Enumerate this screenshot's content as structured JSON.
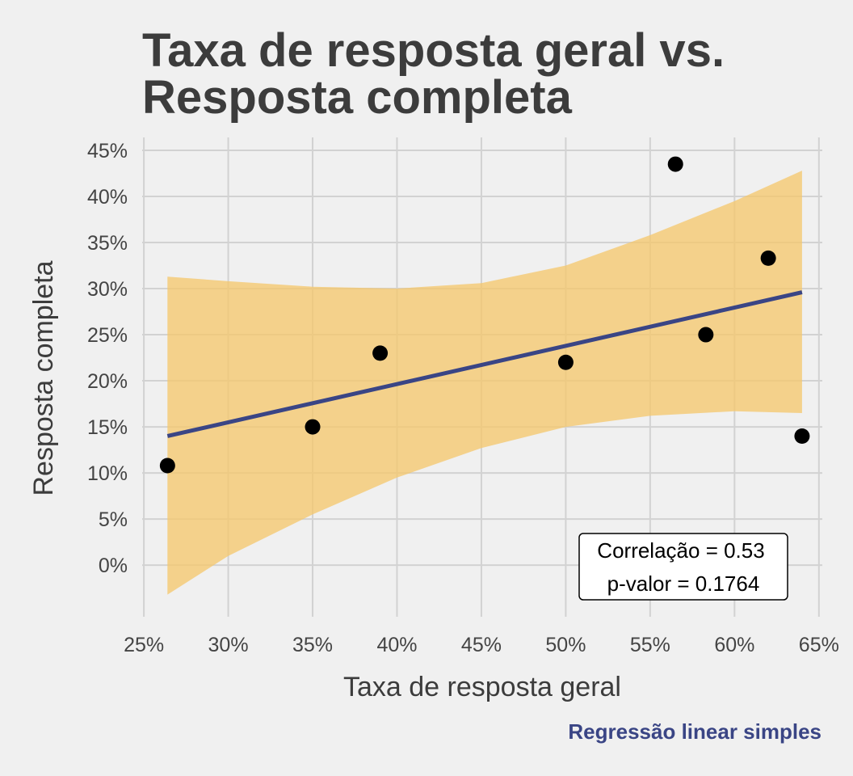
{
  "chart_data": {
    "type": "scatter",
    "title_lines": [
      "Taxa de resposta geral vs.",
      "Resposta completa"
    ],
    "xlabel": "Taxa de resposta geral",
    "ylabel": "Resposta completa",
    "caption": "Regressão linear simples",
    "x_ticks": [
      "25%",
      "30%",
      "35%",
      "40%",
      "45%",
      "50%",
      "55%",
      "60%",
      "65%"
    ],
    "y_ticks": [
      "0%",
      "5%",
      "10%",
      "15%",
      "20%",
      "25%",
      "30%",
      "35%",
      "40%",
      "45%"
    ],
    "xlim": [
      24.9,
      65.2
    ],
    "ylim": [
      -5.6,
      46.4
    ],
    "grid": true,
    "points": [
      {
        "x": 26.4,
        "y": 10.8
      },
      {
        "x": 35.0,
        "y": 15.0
      },
      {
        "x": 39.0,
        "y": 23.0
      },
      {
        "x": 50.0,
        "y": 22.0
      },
      {
        "x": 56.5,
        "y": 43.5
      },
      {
        "x": 58.3,
        "y": 25.0
      },
      {
        "x": 62.0,
        "y": 33.3
      },
      {
        "x": 64.0,
        "y": 14.0
      }
    ],
    "regression_line": {
      "x": [
        26.4,
        64.0
      ],
      "y": [
        14.0,
        29.6
      ]
    },
    "confidence_band": {
      "x": [
        26.4,
        30.0,
        35.0,
        40.0,
        45.0,
        50.0,
        55.0,
        60.0,
        64.0
      ],
      "lower": [
        -3.2,
        1.0,
        5.5,
        9.5,
        12.7,
        15.0,
        16.2,
        16.7,
        16.5
      ],
      "upper": [
        31.3,
        30.8,
        30.2,
        30.0,
        30.6,
        32.5,
        35.8,
        39.5,
        42.8
      ]
    },
    "annotation": {
      "correlation": "Correlação = 0.53",
      "p_value": "p-valor = 0.1764"
    },
    "colors": {
      "points": "#000000",
      "line": "#3a4585",
      "band": "#f5c86e",
      "grid": "#d2d2d2",
      "caption": "#3a4585",
      "background": "#f0f0f0"
    }
  }
}
